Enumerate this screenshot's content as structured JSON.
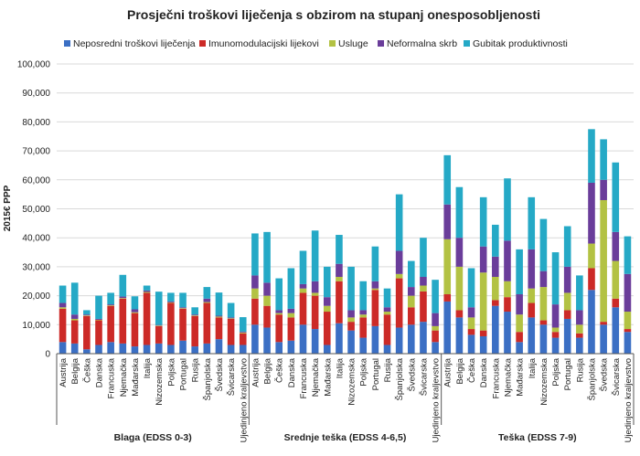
{
  "chart_data": {
    "type": "bar",
    "stacked": true,
    "title": "Prosječni troškovi liječenja s obzirom na stupanj onesposobljenosti",
    "ylabel": "2015€ PPP",
    "ylim": [
      0,
      100000
    ],
    "yticks": [
      "0",
      "10,000",
      "20,000",
      "30,000",
      "40,000",
      "50,000",
      "60,000",
      "70,000",
      "80,000",
      "90,000",
      "100,000"
    ],
    "grid": true,
    "legend_position": "top",
    "legend": [
      {
        "name": "Neposredni troškovi liječenja",
        "color": "#3b6fc4"
      },
      {
        "name": "Imunomodulacijski lijekovi",
        "color": "#cc2a27"
      },
      {
        "name": "Usluge",
        "color": "#b3c243"
      },
      {
        "name": "Neformalna skrb",
        "color": "#6a3d9a"
      },
      {
        "name": "Gubitak produktivnosti",
        "color": "#25a9c6"
      }
    ],
    "groups": [
      {
        "label": "Blaga (EDSS 0-3)",
        "categories": [
          "Austrija",
          "Belgija",
          "Češka",
          "Danska",
          "Francuska",
          "Njemačka",
          "Mađarska",
          "Italija",
          "Nizozemska",
          "Poljska",
          "Portugal",
          "Rusija",
          "Španjolska",
          "Švedska",
          "Švicarska",
          "Ujedinjeno kraljevstvo"
        ],
        "series": [
          {
            "name": "Neposredni troškovi liječenja",
            "values": [
              4000,
              3500,
              1500,
              3000,
              4000,
              3500,
              2500,
              3000,
              3500,
              3000,
              4500,
              2500,
              3500,
              5000,
              3000,
              3000
            ]
          },
          {
            "name": "Imunomodulacijski lijekovi",
            "values": [
              11500,
              8000,
              11500,
              8500,
              12500,
              15500,
              11500,
              18000,
              6000,
              14500,
              11000,
              10500,
              14000,
              7500,
              9000,
              4000
            ]
          },
          {
            "name": "Usluge",
            "values": [
              500,
              500,
              200,
              200,
              200,
              200,
              300,
              300,
              200,
              200,
              200,
              200,
              300,
              300,
              200,
              300
            ]
          },
          {
            "name": "Neformalna skrb",
            "values": [
              1500,
              1500,
              300,
              300,
              300,
              500,
              1000,
              500,
              200,
              300,
              300,
              300,
              1200,
              300,
              300,
              300
            ]
          },
          {
            "name": "Gubitak produktivnosti",
            "values": [
              6000,
              11000,
              1500,
              8000,
              4000,
              7500,
              4500,
              1700,
              11500,
              3000,
              5000,
              2500,
              4000,
              8000,
              5000,
              5000
            ]
          }
        ]
      },
      {
        "label": "Srednje teška (EDSS 4-6,5)",
        "categories": [
          "Austrija",
          "Belgija",
          "Češka",
          "Danska",
          "Francuska",
          "Njemačka",
          "Mađarska",
          "Italija",
          "Nizozemska",
          "Poljska",
          "Portugal",
          "Rusija",
          "Španjolska",
          "Švedska",
          "Švicarska",
          "Ujedinjeno kraljevstvo"
        ],
        "series": [
          {
            "name": "Neposredni troškovi liječenja",
            "values": [
              10000,
              9000,
              4000,
              4500,
              10000,
              8500,
              3000,
              10500,
              8000,
              5500,
              9500,
              3000,
              9000,
              10000,
              11000,
              4000
            ]
          },
          {
            "name": "Imunomodulacijski lijekovi",
            "values": [
              9000,
              7500,
              9500,
              8000,
              11000,
              11500,
              11500,
              14500,
              3000,
              7000,
              12500,
              10500,
              17000,
              6000,
              10500,
              4000
            ]
          },
          {
            "name": "Usluge",
            "values": [
              3500,
              3500,
              500,
              1500,
              1500,
              1000,
              2000,
              1500,
              1500,
              1000,
              500,
              1000,
              1500,
              4000,
              2000,
              1500
            ]
          },
          {
            "name": "Neformalna skrb",
            "values": [
              4500,
              4500,
              1000,
              1500,
              1500,
              4000,
              3000,
              4500,
              2500,
              1500,
              2500,
              1500,
              8000,
              3000,
              3000,
              4500
            ]
          },
          {
            "name": "Gubitak produktivnosti",
            "values": [
              14500,
              17500,
              11000,
              14000,
              11500,
              17500,
              10500,
              10000,
              15000,
              10000,
              12000,
              6500,
              19500,
              9000,
              13500,
              11500
            ]
          }
        ]
      },
      {
        "label": "Teška (EDSS 7-9)",
        "categories": [
          "Austrija",
          "Belgija",
          "Češka",
          "Danska",
          "Francuska",
          "Njemačka",
          "Mađarska",
          "Italija",
          "Nizozemska",
          "Poljska",
          "Portugal",
          "Rusija",
          "Španjolska",
          "Švedska",
          "Švicarska",
          "Ujedinjeno kraljevstvo"
        ],
        "series": [
          {
            "name": "Neposredni troškovi liječenja",
            "values": [
              18000,
              12500,
              6500,
              6000,
              16500,
              14500,
              4000,
              12500,
              10000,
              5500,
              12000,
              5500,
              22000,
              10000,
              16000,
              7500
            ]
          },
          {
            "name": "Imunomodulacijski lijekovi",
            "values": [
              2500,
              2500,
              2000,
              2000,
              2000,
              5000,
              3500,
              5000,
              1500,
              2000,
              3000,
              1500,
              7500,
              1000,
              3000,
              1000
            ]
          },
          {
            "name": "Usluge",
            "values": [
              19000,
              15000,
              4000,
              20000,
              8000,
              5500,
              6000,
              5000,
              11500,
              1500,
              6000,
              3000,
              8500,
              42000,
              13000,
              6000
            ]
          },
          {
            "name": "Neformalna skrb",
            "values": [
              12000,
              10000,
              3500,
              9000,
              7000,
              14000,
              7000,
              13500,
              5500,
              8000,
              9000,
              5000,
              21000,
              7000,
              10000,
              13000
            ]
          },
          {
            "name": "Gubitak produktivnosti",
            "values": [
              17000,
              17500,
              13500,
              17000,
              11000,
              21500,
              15500,
              18000,
              18000,
              18000,
              14000,
              12000,
              18500,
              14000,
              24000,
              13000
            ]
          }
        ]
      }
    ]
  }
}
